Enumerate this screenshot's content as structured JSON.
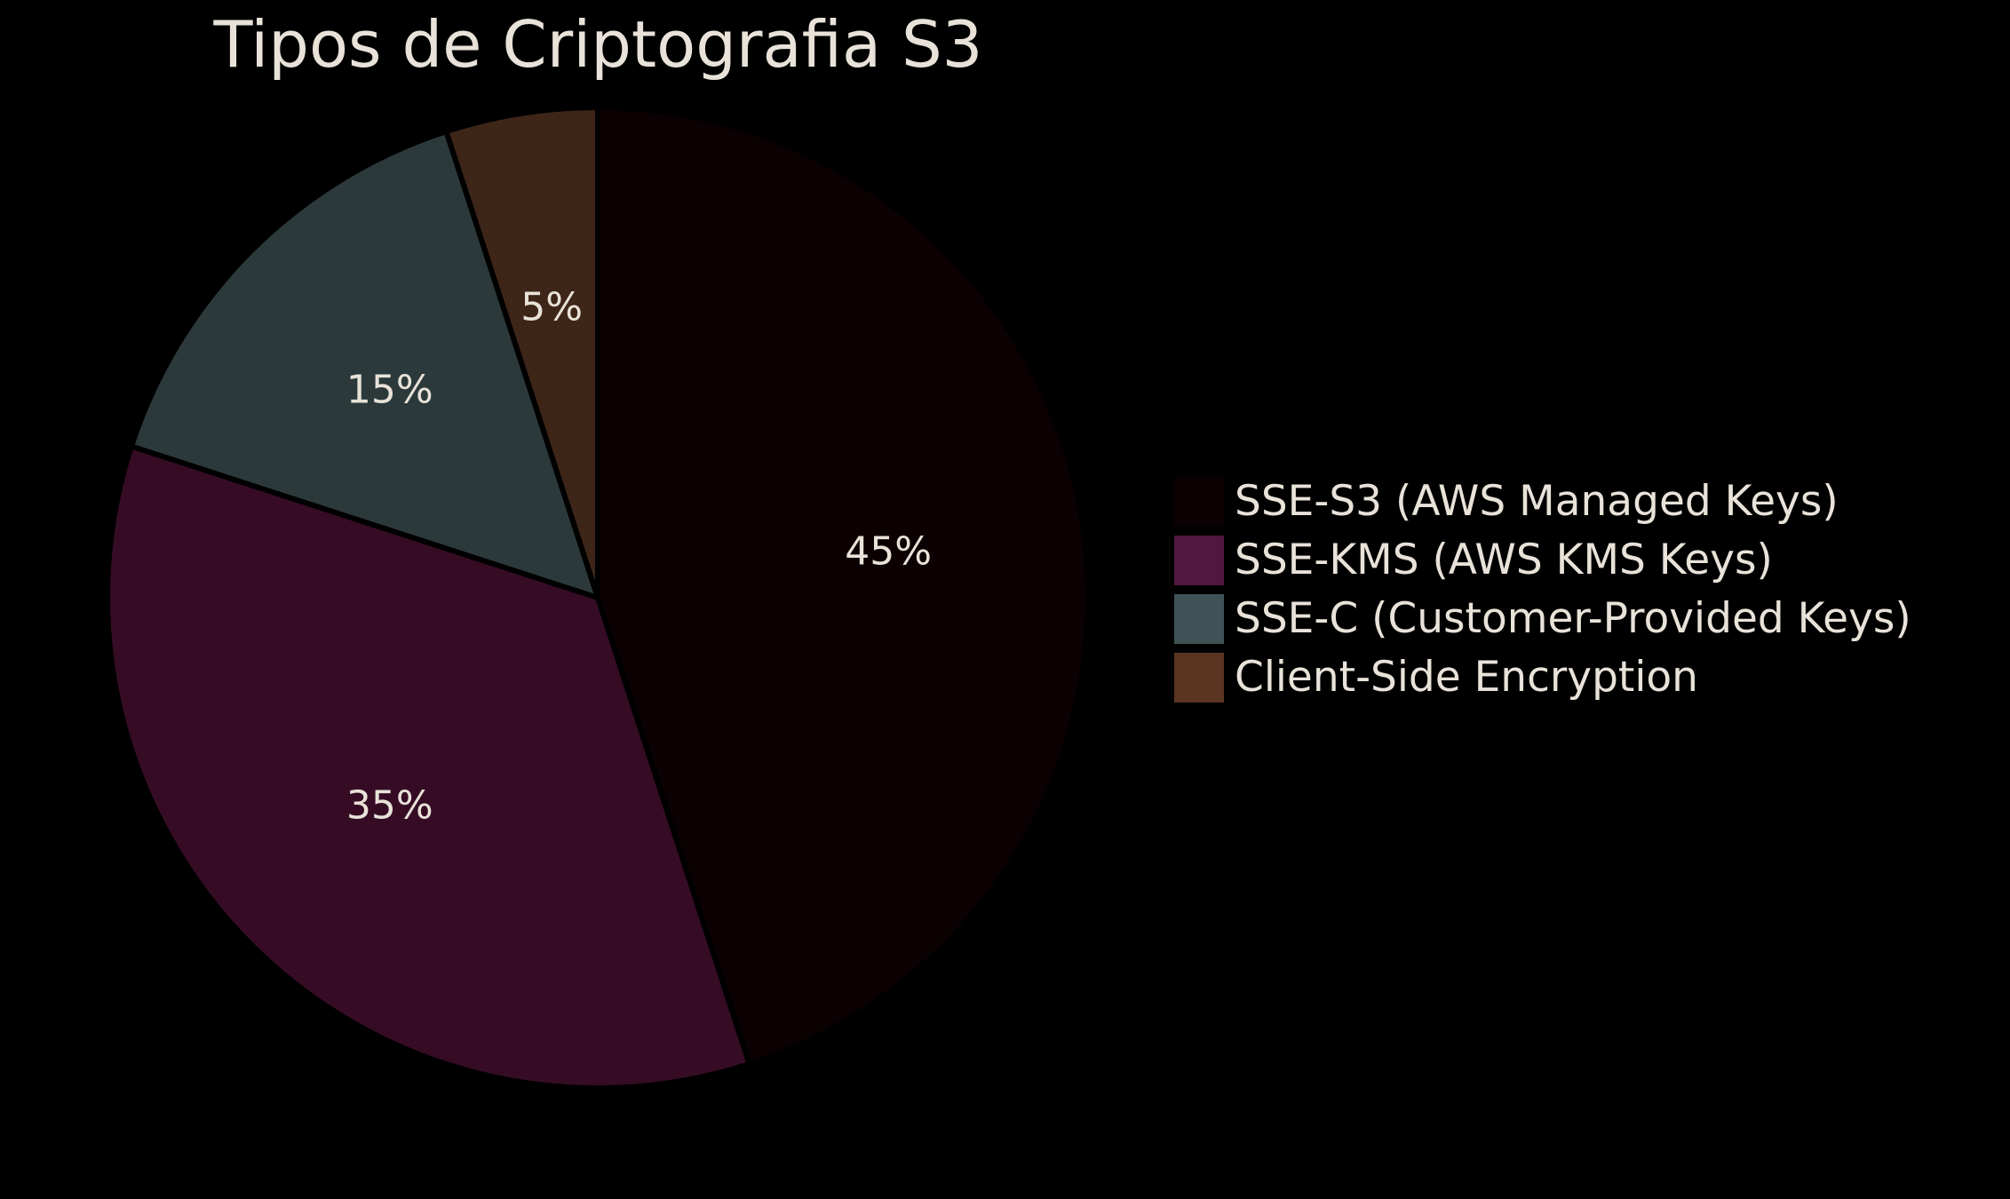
{
  "chart_data": {
    "type": "pie",
    "title": "Tipos de Criptografia S3",
    "slices": [
      {
        "label": "SSE-S3 (AWS Managed Keys)",
        "value": 45,
        "display": "45%",
        "color": "#0b0002"
      },
      {
        "label": "SSE-KMS (AWS KMS Keys)",
        "value": 35,
        "display": "35%",
        "color": "#360c25"
      },
      {
        "label": "SSE-C (Customer-Provided Keys)",
        "value": 15,
        "display": "15%",
        "color": "#2c393b"
      },
      {
        "label": "Client-Side Encryption",
        "value": 5,
        "display": "5%",
        "color": "#3d2518"
      }
    ],
    "legend_colors": [
      "#0b0002",
      "#521640",
      "#3f5357",
      "#5a3521"
    ],
    "start_angle_deg": 90,
    "direction": "clockwise",
    "legend": "right",
    "background": "#000000",
    "text_color": "#e8e2d8"
  }
}
